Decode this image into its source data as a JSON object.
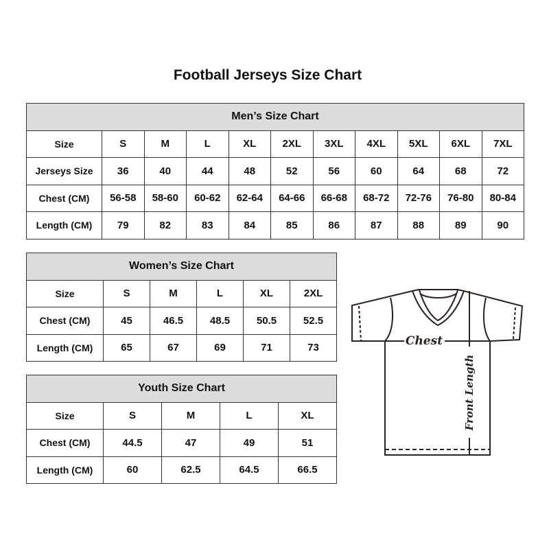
{
  "title": "Football Jerseys Size Chart",
  "mens": {
    "caption": "Men’s Size Chart",
    "rows": [
      [
        "Size",
        "S",
        "M",
        "L",
        "XL",
        "2XL",
        "3XL",
        "4XL",
        "5XL",
        "6XL",
        "7XL"
      ],
      [
        "Jerseys Size",
        "36",
        "40",
        "44",
        "48",
        "52",
        "56",
        "60",
        "64",
        "68",
        "72"
      ],
      [
        "Chest (CM)",
        "56-58",
        "58-60",
        "60-62",
        "62-64",
        "64-66",
        "66-68",
        "68-72",
        "72-76",
        "76-80",
        "80-84"
      ],
      [
        "Length (CM)",
        "79",
        "82",
        "83",
        "84",
        "85",
        "86",
        "87",
        "88",
        "89",
        "90"
      ]
    ]
  },
  "womens": {
    "caption": "Women’s Size Chart",
    "rows": [
      [
        "Size",
        "S",
        "M",
        "L",
        "XL",
        "2XL"
      ],
      [
        "Chest (CM)",
        "45",
        "46.5",
        "48.5",
        "50.5",
        "52.5"
      ],
      [
        "Length (CM)",
        "65",
        "67",
        "69",
        "71",
        "73"
      ]
    ]
  },
  "youth": {
    "caption": "Youth Size Chart",
    "rows": [
      [
        "Size",
        "S",
        "M",
        "L",
        "XL"
      ],
      [
        "Chest (CM)",
        "44.5",
        "47",
        "49",
        "51"
      ],
      [
        "Length (CM)",
        "60",
        "62.5",
        "64.5",
        "66.5"
      ]
    ]
  },
  "diagram": {
    "chest_label": "Chest",
    "length_label": "Front Length"
  }
}
